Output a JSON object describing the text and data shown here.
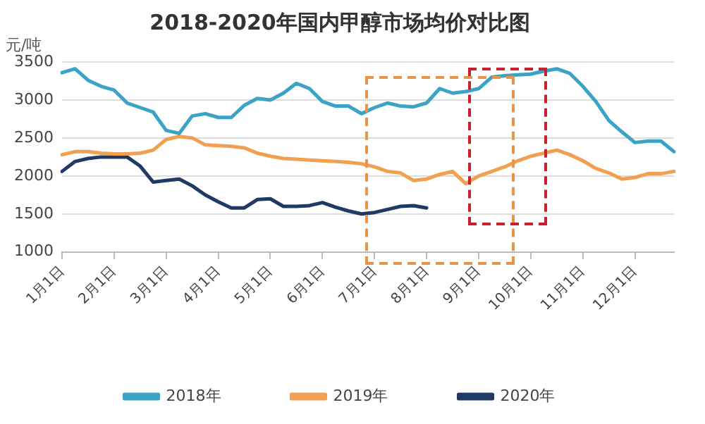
{
  "chart_data": {
    "type": "line",
    "title": "2018-2020年国内甲醇市场均价对比图",
    "ylabel": "元/吨",
    "categories": [
      "1月1日",
      null,
      null,
      null,
      "2月1日",
      null,
      null,
      null,
      "3月1日",
      null,
      null,
      null,
      "4月1日",
      null,
      null,
      null,
      "5月1日",
      null,
      null,
      null,
      "6月1日",
      null,
      null,
      null,
      "7月1日",
      null,
      null,
      null,
      "8月1日",
      null,
      null,
      null,
      "9月1日",
      null,
      null,
      null,
      "10月1日",
      null,
      null,
      null,
      "11月1日",
      null,
      null,
      null,
      "12月1日",
      null,
      null,
      null
    ],
    "series": [
      {
        "name": "2018年",
        "color": "#3ba4c6",
        "values": [
          3360,
          3410,
          3260,
          3180,
          3130,
          2960,
          2900,
          2840,
          2600,
          2560,
          2790,
          2820,
          2770,
          2770,
          2930,
          3020,
          3000,
          3090,
          3220,
          3150,
          2980,
          2920,
          2920,
          2820,
          2900,
          2960,
          2920,
          2910,
          2960,
          3150,
          3090,
          3110,
          3150,
          3300,
          3320,
          3330,
          3340,
          3380,
          3410,
          3350,
          3180,
          2980,
          2730,
          2580,
          2440,
          2460,
          2460,
          2320
        ]
      },
      {
        "name": "2019年",
        "color": "#f0a050",
        "values": [
          2280,
          2320,
          2320,
          2300,
          2290,
          2290,
          2300,
          2340,
          2480,
          2520,
          2500,
          2410,
          2400,
          2390,
          2370,
          2300,
          2260,
          2230,
          2220,
          2210,
          2200,
          2190,
          2180,
          2160,
          2120,
          2060,
          2040,
          1940,
          1960,
          2020,
          2060,
          1900,
          2000,
          2060,
          2120,
          2200,
          2260,
          2300,
          2340,
          2280,
          2200,
          2100,
          2040,
          1960,
          1980,
          2030,
          2030,
          2060
        ]
      },
      {
        "name": "2020年",
        "color": "#1f3a64",
        "values": [
          2060,
          2190,
          2230,
          2250,
          2250,
          2250,
          2130,
          1920,
          1940,
          1960,
          1870,
          1750,
          1660,
          1580,
          1580,
          1690,
          1700,
          1600,
          1600,
          1610,
          1650,
          1590,
          1540,
          1500,
          1520,
          1560,
          1600,
          1610,
          1580,
          null,
          null,
          null,
          null,
          null,
          null,
          null,
          null,
          null,
          null,
          null,
          null,
          null,
          null,
          null,
          null,
          null,
          null,
          null
        ]
      }
    ],
    "ylim": [
      1000,
      3500
    ],
    "yticks": [
      1000,
      1500,
      2000,
      2500,
      3000,
      3500
    ],
    "grid": "y",
    "legend": "bottom",
    "marker": "none",
    "line_style": "solid"
  }
}
